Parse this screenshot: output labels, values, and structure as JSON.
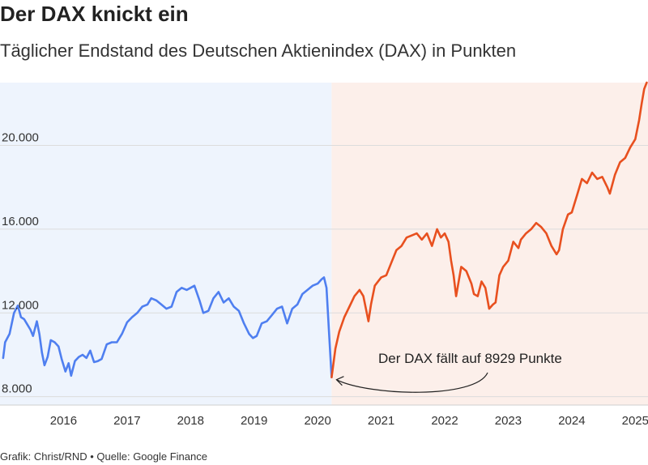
{
  "header": {
    "title": "Der DAX knickt ein",
    "subtitle": "Täglicher Endstand des Deutschen Aktienindex (DAX) in Punkten"
  },
  "footer": {
    "source": "Grafik: Christ/RND • Quelle: Google Finance"
  },
  "colors": {
    "pre_crash_line": "#4f7ff0",
    "post_crash_line": "#e8501f",
    "pre_crash_band": "#eef4fd",
    "post_crash_band": "#fcefea",
    "grid": "#dcdcdc"
  },
  "chart_data": {
    "type": "line",
    "title": "Der DAX knickt ein",
    "subtitle": "Täglicher Endstand des Deutschen Aktienindex (DAX) in Punkten",
    "xlim": [
      2015.0,
      2025.2
    ],
    "ylim": [
      7600,
      23000
    ],
    "y_ticks": [
      8000,
      12000,
      16000,
      20000
    ],
    "y_tick_labels": [
      "8.000",
      "12.000",
      "16.000",
      "20.000"
    ],
    "x_ticks": [
      2016,
      2017,
      2018,
      2019,
      2020,
      2021,
      2022,
      2023,
      2024,
      2025
    ],
    "x_tick_labels": [
      "2016",
      "2017",
      "2018",
      "2019",
      "2020",
      "2021",
      "2022",
      "2023",
      "2024",
      "2025"
    ],
    "grid": true,
    "bands": [
      {
        "from": 2015.0,
        "to": 2020.22
      },
      {
        "from": 2020.22,
        "to": 2025.2
      }
    ],
    "series": [
      {
        "x": [
          2015.05,
          2015.08,
          2015.15,
          2015.22,
          2015.28,
          2015.33,
          2015.38,
          2015.42,
          2015.48,
          2015.52,
          2015.58,
          2015.62,
          2015.66,
          2015.7,
          2015.75,
          2015.8,
          2015.86,
          2015.92,
          2015.97,
          2016.03,
          2016.08,
          2016.12,
          2016.18,
          2016.24,
          2016.3,
          2016.36,
          2016.42,
          2016.48,
          2016.54,
          2016.6,
          2016.68,
          2016.76,
          2016.84,
          2016.92,
          2017.0,
          2017.08,
          2017.16,
          2017.24,
          2017.32,
          2017.38,
          2017.46,
          2017.54,
          2017.62,
          2017.7,
          2017.78,
          2017.86,
          2017.94,
          2018.0,
          2018.06,
          2018.14,
          2018.2,
          2018.28,
          2018.36,
          2018.44,
          2018.52,
          2018.6,
          2018.68,
          2018.76,
          2018.84,
          2018.92,
          2018.98,
          2019.04,
          2019.12,
          2019.2,
          2019.28,
          2019.36,
          2019.44,
          2019.52,
          2019.6,
          2019.68,
          2019.76,
          2019.84,
          2019.92,
          2020.0,
          2020.06,
          2020.1,
          2020.14,
          2020.18,
          2020.22
        ],
        "values": [
          9850,
          10600,
          11000,
          12000,
          12350,
          11800,
          11700,
          11500,
          11200,
          10900,
          11600,
          11000,
          10100,
          9500,
          9900,
          10700,
          10600,
          10400,
          9800,
          9200,
          9600,
          9000,
          9700,
          9900,
          10000,
          9850,
          10200,
          9650,
          9700,
          9800,
          10500,
          10600,
          10600,
          11000,
          11550,
          11800,
          12000,
          12300,
          12400,
          12700,
          12600,
          12400,
          12200,
          12300,
          13000,
          13200,
          13100,
          13200,
          13300,
          12600,
          12000,
          12100,
          12700,
          13000,
          12500,
          12700,
          12300,
          12100,
          11500,
          11000,
          10800,
          10900,
          11500,
          11600,
          11900,
          12200,
          12300,
          11500,
          12200,
          12400,
          12900,
          13100,
          13300,
          13400,
          13600,
          13700,
          13200,
          11000,
          8929
        ]
      },
      {
        "x": [
          2020.22,
          2020.28,
          2020.34,
          2020.42,
          2020.5,
          2020.58,
          2020.66,
          2020.72,
          2020.8,
          2020.84,
          2020.9,
          2021.0,
          2021.08,
          2021.16,
          2021.24,
          2021.32,
          2021.4,
          2021.48,
          2021.56,
          2021.64,
          2021.72,
          2021.8,
          2021.88,
          2021.94,
          2022.0,
          2022.06,
          2022.1,
          2022.14,
          2022.18,
          2022.26,
          2022.34,
          2022.42,
          2022.46,
          2022.52,
          2022.58,
          2022.64,
          2022.7,
          2022.76,
          2022.8,
          2022.86,
          2022.92,
          2023.0,
          2023.08,
          2023.16,
          2023.2,
          2023.28,
          2023.36,
          2023.44,
          2023.52,
          2023.6,
          2023.68,
          2023.76,
          2023.8,
          2023.86,
          2023.94,
          2024.0,
          2024.08,
          2024.16,
          2024.24,
          2024.32,
          2024.4,
          2024.48,
          2024.56,
          2024.6,
          2024.68,
          2024.76,
          2024.84,
          2024.92,
          2025.0,
          2025.06,
          2025.1,
          2025.14,
          2025.18
        ],
        "values": [
          8929,
          10300,
          11100,
          11800,
          12300,
          12800,
          13100,
          12800,
          11600,
          12400,
          13300,
          13700,
          13800,
          14400,
          15000,
          15200,
          15600,
          15700,
          15800,
          15500,
          15800,
          15200,
          16000,
          15600,
          15800,
          15400,
          14500,
          13800,
          12800,
          14200,
          14000,
          13400,
          12900,
          12800,
          13500,
          13200,
          12200,
          12400,
          12500,
          13800,
          14200,
          14500,
          15400,
          15100,
          15500,
          15800,
          16000,
          16300,
          16100,
          15800,
          15200,
          14800,
          15000,
          16000,
          16700,
          16800,
          17600,
          18400,
          18200,
          18700,
          18400,
          18500,
          18000,
          17700,
          18600,
          19200,
          19400,
          19900,
          20300,
          21200,
          22000,
          22700,
          23000
        ]
      }
    ],
    "annotations": [
      {
        "text": "Der DAX fällt auf 8929 Punkte",
        "x": 2020.22,
        "y": 8929
      }
    ]
  }
}
